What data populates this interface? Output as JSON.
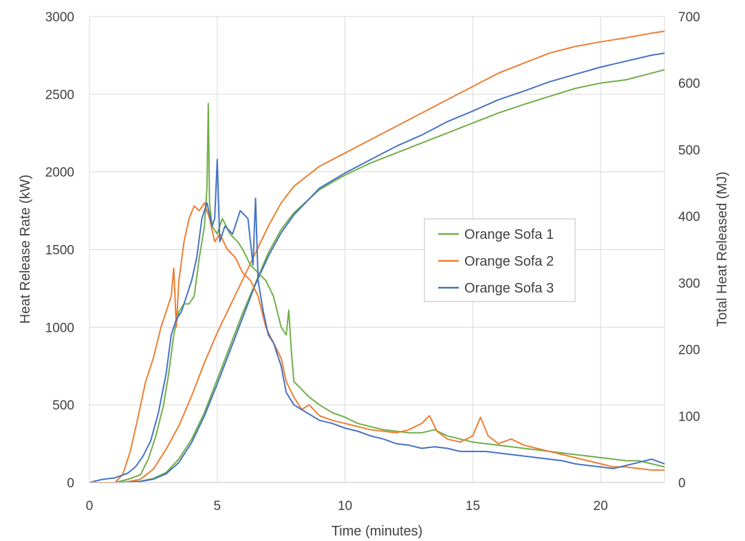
{
  "chart_data": {
    "type": "line",
    "title": "",
    "xlabel": "Time (minutes)",
    "ylabel": "Heat Release Rate (kW)",
    "y2label": "Total Heat Released (MJ)",
    "xlim": [
      0,
      22.5
    ],
    "ylim": [
      0,
      3000
    ],
    "y2lim": [
      0,
      700
    ],
    "xticks": [
      "0",
      "5",
      "10",
      "15",
      "20"
    ],
    "yticks": [
      "0",
      "500",
      "1000",
      "1500",
      "2000",
      "2500",
      "3000"
    ],
    "y2ticks": [
      "0",
      "100",
      "200",
      "300",
      "400",
      "500",
      "600",
      "700"
    ],
    "grid": true,
    "legend_position": "center-right",
    "legend": [
      "Orange Sofa 1",
      "Orange Sofa 2",
      "Orange Sofa 3"
    ],
    "colors": [
      "#70ad47",
      "#ed7d31",
      "#4472c4"
    ],
    "hrr_series": [
      {
        "name": "Orange Sofa 1",
        "color": "#70ad47",
        "x": [
          0,
          1,
          1.5,
          2,
          2.3,
          2.6,
          2.9,
          3.1,
          3.3,
          3.5,
          3.7,
          3.9,
          4.1,
          4.3,
          4.5,
          4.6,
          4.65,
          4.7,
          4.8,
          5.0,
          5.2,
          5.5,
          5.8,
          6.0,
          6.3,
          6.6,
          6.9,
          7.2,
          7.5,
          7.7,
          7.8,
          7.9,
          8.0,
          8.3,
          8.6,
          9,
          9.5,
          10,
          10.5,
          11,
          11.5,
          12,
          12.5,
          13,
          13.5,
          14,
          14.5,
          15,
          15.5,
          16,
          16.5,
          17,
          17.5,
          18,
          18.5,
          19,
          19.5,
          20,
          20.5,
          21,
          21.5,
          22,
          22.5
        ],
        "y": [
          0,
          0,
          20,
          50,
          150,
          300,
          500,
          700,
          950,
          1100,
          1150,
          1150,
          1200,
          1450,
          1650,
          1900,
          2440,
          1800,
          1650,
          1600,
          1700,
          1600,
          1550,
          1500,
          1400,
          1350,
          1300,
          1200,
          1000,
          950,
          1110,
          850,
          650,
          600,
          550,
          500,
          450,
          420,
          380,
          360,
          340,
          330,
          320,
          320,
          340,
          300,
          280,
          260,
          250,
          240,
          230,
          220,
          210,
          200,
          190,
          180,
          170,
          160,
          150,
          140,
          140,
          120,
          100
        ]
      },
      {
        "name": "Orange Sofa 2",
        "color": "#ed7d31",
        "x": [
          0,
          1,
          1.3,
          1.6,
          1.9,
          2.2,
          2.5,
          2.8,
          3.0,
          3.2,
          3.3,
          3.4,
          3.5,
          3.7,
          3.9,
          4.1,
          4.3,
          4.5,
          4.7,
          4.9,
          5.1,
          5.4,
          5.7,
          6.0,
          6.3,
          6.6,
          6.9,
          7.2,
          7.5,
          7.7,
          8.0,
          8.3,
          8.6,
          9,
          9.5,
          10,
          10.5,
          11,
          11.5,
          12,
          12.5,
          13,
          13.3,
          13.6,
          14,
          14.5,
          15,
          15.3,
          15.6,
          16,
          16.5,
          17,
          17.5,
          18,
          18.5,
          19,
          19.5,
          20,
          20.5,
          21,
          21.5,
          22,
          22.5
        ],
        "y": [
          0,
          0,
          50,
          200,
          420,
          650,
          800,
          1000,
          1100,
          1200,
          1380,
          1000,
          1300,
          1550,
          1700,
          1780,
          1750,
          1800,
          1700,
          1550,
          1600,
          1500,
          1450,
          1350,
          1300,
          1200,
          1000,
          900,
          800,
          650,
          550,
          470,
          500,
          430,
          400,
          380,
          360,
          340,
          330,
          320,
          340,
          380,
          430,
          330,
          280,
          260,
          300,
          420,
          300,
          250,
          280,
          240,
          220,
          200,
          180,
          160,
          140,
          120,
          100,
          100,
          90,
          80,
          80
        ]
      },
      {
        "name": "Orange Sofa 3",
        "color": "#4472c4",
        "x": [
          0,
          0.5,
          1,
          1.5,
          1.8,
          2.1,
          2.4,
          2.7,
          3.0,
          3.2,
          3.4,
          3.6,
          3.8,
          4.0,
          4.2,
          4.4,
          4.6,
          4.8,
          4.9,
          5.0,
          5.1,
          5.3,
          5.6,
          5.9,
          6.2,
          6.4,
          6.5,
          6.6,
          6.8,
          7.0,
          7.2,
          7.5,
          7.7,
          8.0,
          8.5,
          9,
          9.5,
          10,
          10.5,
          11,
          11.5,
          12,
          12.5,
          13,
          13.5,
          14,
          14.5,
          15,
          15.5,
          16,
          16.5,
          17,
          17.5,
          18,
          18.5,
          19,
          19.5,
          20,
          20.5,
          21,
          21.5,
          22,
          22.5
        ],
        "y": [
          0,
          20,
          30,
          60,
          100,
          170,
          270,
          450,
          700,
          950,
          1050,
          1100,
          1200,
          1300,
          1450,
          1700,
          1800,
          1650,
          1700,
          2080,
          1550,
          1650,
          1600,
          1750,
          1700,
          1400,
          1830,
          1300,
          1100,
          950,
          900,
          750,
          580,
          500,
          450,
          400,
          380,
          350,
          330,
          300,
          280,
          250,
          240,
          220,
          230,
          220,
          200,
          200,
          200,
          190,
          180,
          170,
          160,
          150,
          140,
          120,
          110,
          100,
          90,
          110,
          130,
          150,
          120
        ]
      }
    ],
    "thr_series": [
      {
        "name": "Orange Sofa 1",
        "color": "#70ad47",
        "x": [
          0,
          1,
          1.5,
          2,
          2.5,
          3,
          3.5,
          4,
          4.5,
          5,
          5.5,
          6,
          6.5,
          7,
          7.5,
          8,
          9,
          10,
          11,
          12,
          13,
          14,
          15,
          16,
          17,
          18,
          19,
          20,
          21,
          22,
          22.5
        ],
        "y": [
          0,
          0,
          0.5,
          2,
          6,
          15,
          35,
          65,
          105,
          155,
          205,
          255,
          300,
          345,
          380,
          405,
          440,
          462,
          480,
          495,
          510,
          525,
          540,
          555,
          568,
          580,
          592,
          600,
          605,
          615,
          620
        ]
      },
      {
        "name": "Orange Sofa 2",
        "color": "#ed7d31",
        "x": [
          0,
          1,
          1.5,
          2,
          2.5,
          3,
          3.5,
          4,
          4.5,
          5,
          5.5,
          6,
          6.5,
          7,
          7.5,
          8,
          9,
          10,
          11,
          12,
          13,
          14,
          15,
          16,
          17,
          18,
          19,
          20,
          21,
          22,
          22.5
        ],
        "y": [
          0,
          0,
          1,
          5,
          20,
          50,
          85,
          130,
          180,
          225,
          265,
          305,
          345,
          385,
          420,
          445,
          475,
          495,
          515,
          535,
          555,
          575,
          595,
          615,
          630,
          645,
          655,
          662,
          668,
          675,
          678
        ]
      },
      {
        "name": "Orange Sofa 3",
        "color": "#4472c4",
        "x": [
          0,
          1,
          1.5,
          2,
          2.5,
          3,
          3.5,
          4,
          4.5,
          5,
          5.5,
          6,
          6.5,
          7,
          7.5,
          8,
          9,
          10,
          11,
          12,
          13,
          14,
          15,
          16,
          17,
          18,
          19,
          20,
          21,
          22,
          22.5
        ],
        "y": [
          0,
          0,
          0.5,
          1.5,
          5,
          13,
          30,
          60,
          100,
          148,
          198,
          248,
          298,
          340,
          375,
          402,
          442,
          465,
          485,
          505,
          522,
          542,
          558,
          575,
          588,
          602,
          613,
          624,
          633,
          642,
          645
        ]
      }
    ]
  }
}
